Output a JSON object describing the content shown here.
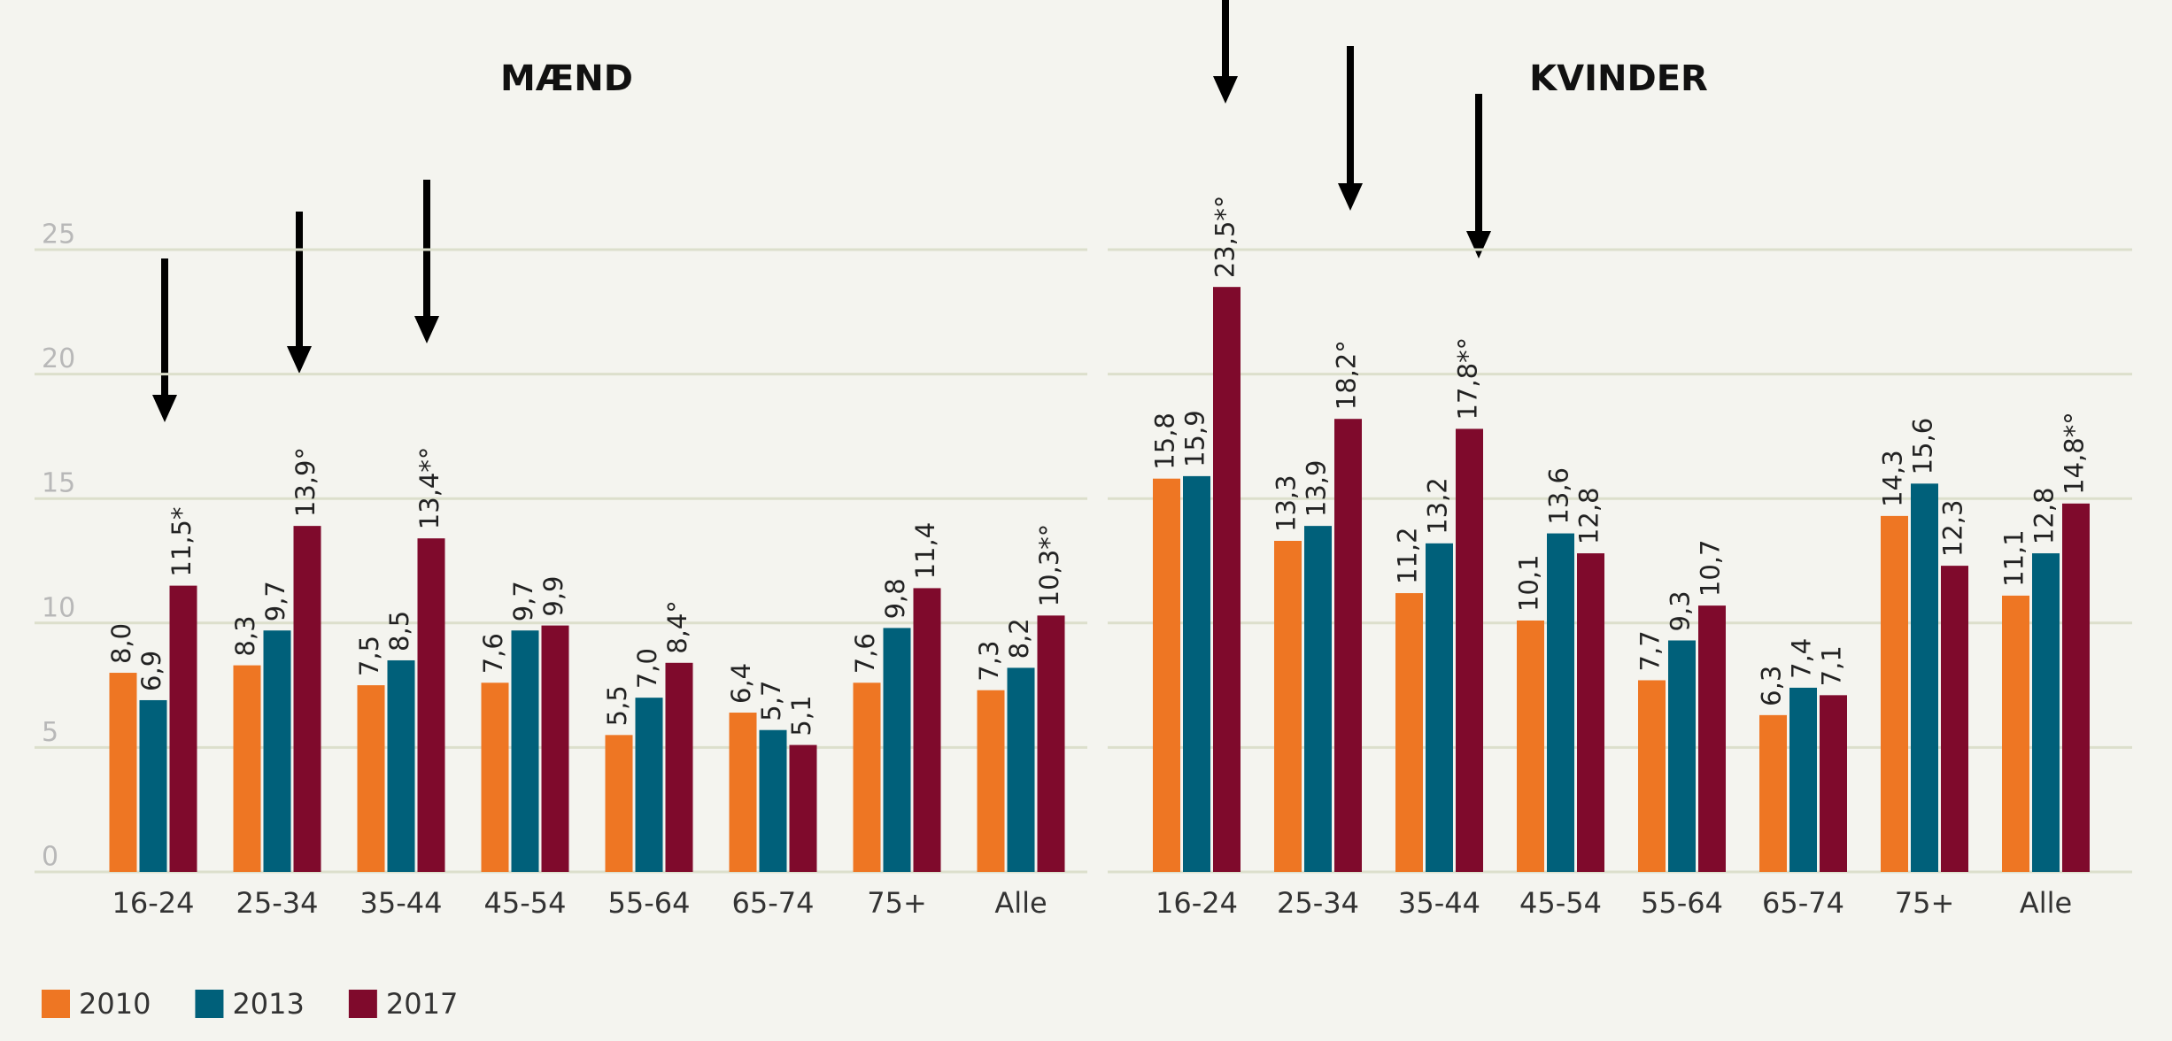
{
  "chart_data": [
    {
      "type": "bar",
      "title": "MÆND",
      "categories": [
        "16-24",
        "25-34",
        "35-44",
        "45-54",
        "55-64",
        "65-74",
        "75+",
        "Alle"
      ],
      "series": [
        {
          "name": "2010",
          "color": "#ee7623",
          "values": [
            8.0,
            8.3,
            7.5,
            7.6,
            5.5,
            6.4,
            7.6,
            7.3
          ],
          "value_labels": [
            "8,0",
            "8,3",
            "7,5",
            "7,6",
            "5,5",
            "6,4",
            "7,6",
            "7,3"
          ]
        },
        {
          "name": "2013",
          "color": "#00607a",
          "values": [
            6.9,
            9.7,
            8.5,
            9.7,
            7.0,
            5.7,
            9.8,
            8.2
          ],
          "value_labels": [
            "6,9",
            "9,7",
            "8,5",
            "9,7",
            "7,0",
            "5,7",
            "9,8",
            "8,2"
          ]
        },
        {
          "name": "2017",
          "color": "#7f0a2c",
          "values": [
            11.5,
            13.9,
            13.4,
            9.9,
            8.4,
            5.1,
            11.4,
            10.3
          ],
          "value_labels": [
            "11,5*",
            "13,9°",
            "13,4*°",
            "9,9",
            "8,4°",
            "5,1",
            "11,4",
            "10,3*°"
          ]
        }
      ],
      "ylim": [
        0,
        25
      ],
      "yticks": [
        0,
        5,
        10,
        15,
        20,
        25
      ],
      "grid": true
    },
    {
      "type": "bar",
      "title": "KVINDER",
      "categories": [
        "16-24",
        "25-34",
        "35-44",
        "45-54",
        "55-64",
        "65-74",
        "75+",
        "Alle"
      ],
      "series": [
        {
          "color": "#ee7623",
          "values": [
            15.8,
            13.3,
            11.2,
            10.1,
            7.7,
            6.3,
            14.3,
            11.1
          ],
          "value_labels": [
            "15,8",
            "13,3",
            "11,2",
            "10,1",
            "7,7",
            "6,3",
            "14,3",
            "11,1"
          ]
        },
        {
          "color": "#00607a",
          "values": [
            15.9,
            13.9,
            13.2,
            13.6,
            9.3,
            7.4,
            15.6,
            12.8
          ],
          "value_labels": [
            "15,9",
            "13,9",
            "13,2",
            "13,6",
            "9,3",
            "7,4",
            "15,6",
            "12,8"
          ]
        },
        {
          "color": "#7f0a2c",
          "values": [
            23.5,
            18.2,
            17.8,
            12.8,
            10.7,
            7.1,
            12.3,
            14.8
          ],
          "value_labels": [
            "23,5*°",
            "18,2°",
            "17,8*°",
            "12,8",
            "10,7",
            "7,1",
            "12,3",
            "14,8*°"
          ]
        }
      ],
      "ylim": [
        0,
        25
      ],
      "yticks": [
        0,
        5,
        10,
        15,
        20,
        25
      ],
      "grid": true
    }
  ]
}
